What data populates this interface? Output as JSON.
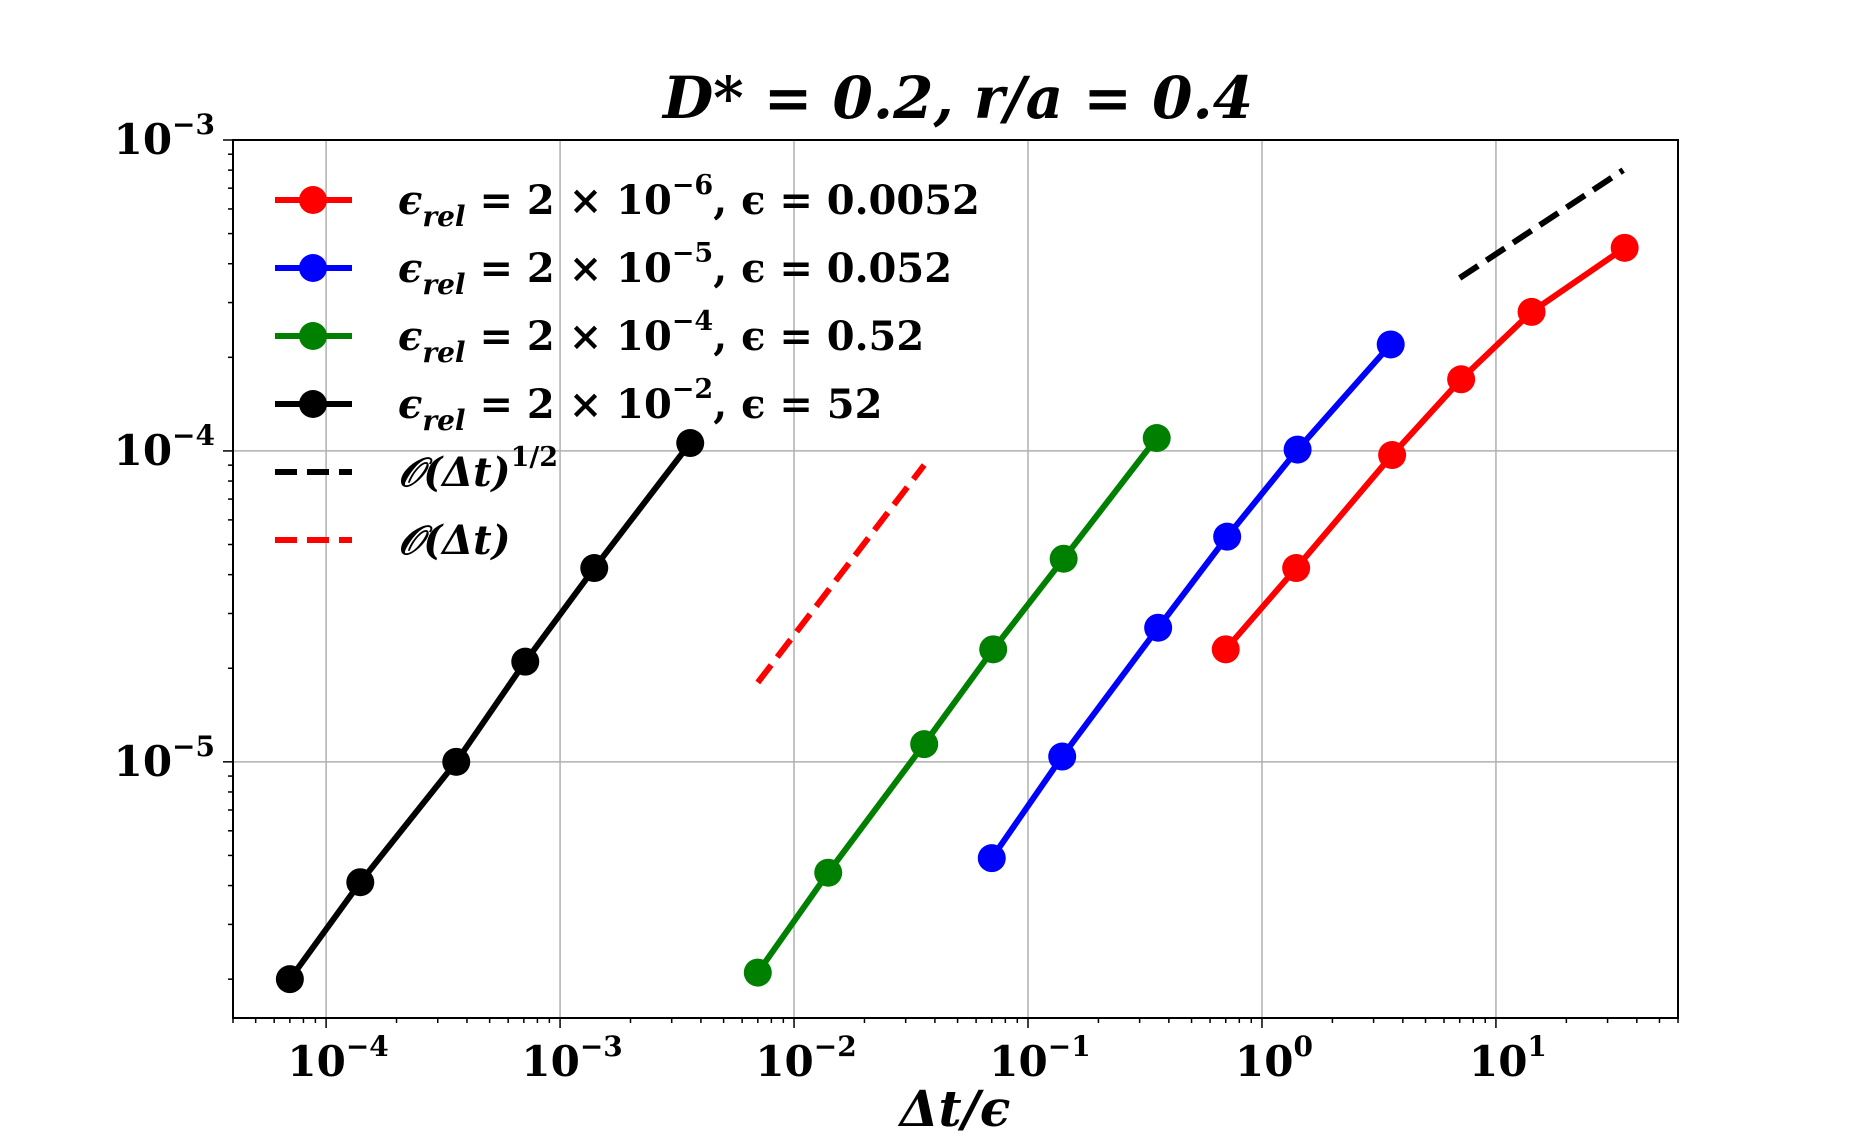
{
  "chart_data": {
    "type": "line",
    "title": "D* = 0.2, r/a = 0.4",
    "xlabel": "Δt/ϵ",
    "ylabel": "",
    "xscale": "log",
    "yscale": "log",
    "xlim": [
      4e-05,
      60
    ],
    "ylim": [
      1.5e-06,
      0.001
    ],
    "grid": true,
    "legend_position": "top-left",
    "x_ticks": [
      {
        "value": 0.0001,
        "base": "10",
        "exp": "−4"
      },
      {
        "value": 0.001,
        "base": "10",
        "exp": "−3"
      },
      {
        "value": 0.01,
        "base": "10",
        "exp": "−2"
      },
      {
        "value": 0.1,
        "base": "10",
        "exp": "−1"
      },
      {
        "value": 1,
        "base": "10",
        "exp": "0"
      },
      {
        "value": 10,
        "base": "10",
        "exp": "1"
      }
    ],
    "y_ticks": [
      {
        "value": 1e-05,
        "base": "10",
        "exp": "−5"
      },
      {
        "value": 0.0001,
        "base": "10",
        "exp": "−4"
      },
      {
        "value": 0.001,
        "base": "10",
        "exp": "−3"
      }
    ],
    "series": [
      {
        "name": "ϵrel = 2 × 10⁻⁶, ϵ = 0.0052",
        "legend": {
          "sym": "ϵ",
          "sub": "rel",
          "mid": " = 2 × 10",
          "exp": "−6",
          "tail": ", ϵ = 0.0052"
        },
        "color": "#ff0000",
        "style": "solid-marker",
        "x": [
          0.7,
          1.4,
          3.6,
          7.1,
          14.2,
          35.5
        ],
        "y": [
          2.3e-05,
          4.2e-05,
          9.7e-05,
          0.00017,
          0.00028,
          0.00045
        ]
      },
      {
        "name": "ϵrel = 2 × 10⁻⁵, ϵ = 0.052",
        "legend": {
          "sym": "ϵ",
          "sub": "rel",
          "mid": " = 2 × 10",
          "exp": "−5",
          "tail": ", ϵ = 0.052"
        },
        "color": "#0000ff",
        "style": "solid-marker",
        "x": [
          0.07,
          0.14,
          0.36,
          0.71,
          1.42,
          3.55
        ],
        "y": [
          4.9e-06,
          1.04e-05,
          2.7e-05,
          5.3e-05,
          0.000101,
          0.00022
        ]
      },
      {
        "name": "ϵrel = 2 × 10⁻⁴, ϵ = 0.52",
        "legend": {
          "sym": "ϵ",
          "sub": "rel",
          "mid": " = 2 × 10",
          "exp": "−4",
          "tail": ", ϵ = 0.52"
        },
        "color": "#008000",
        "style": "solid-marker",
        "x": [
          0.007,
          0.014,
          0.036,
          0.071,
          0.142,
          0.355
        ],
        "y": [
          2.1e-06,
          4.4e-06,
          1.14e-05,
          2.3e-05,
          4.5e-05,
          0.00011
        ]
      },
      {
        "name": "ϵrel = 2 × 10⁻², ϵ = 52",
        "legend": {
          "sym": "ϵ",
          "sub": "rel",
          "mid": " = 2 × 10",
          "exp": "−2",
          "tail": ", ϵ = 52"
        },
        "color": "#000000",
        "style": "solid-marker",
        "x": [
          7e-05,
          0.00014,
          0.00036,
          0.00071,
          0.0014,
          0.0036
        ],
        "y": [
          2e-06,
          4.1e-06,
          1e-05,
          2.1e-05,
          4.2e-05,
          0.000106
        ]
      },
      {
        "name": "O(Δt)^1/2",
        "legend": {
          "sym": "𝒪(Δt)",
          "sub": "",
          "mid": "",
          "exp": "1/2",
          "tail": ""
        },
        "color": "#000000",
        "style": "dashed",
        "x": [
          7,
          35
        ],
        "y": [
          0.00036,
          0.0008
        ]
      },
      {
        "name": "O(Δt)",
        "legend": {
          "sym": "𝒪(Δt)",
          "sub": "",
          "mid": "",
          "exp": "",
          "tail": ""
        },
        "color": "#ff0000",
        "style": "dashed",
        "x": [
          0.007,
          0.036
        ],
        "y": [
          1.8e-05,
          9e-05
        ]
      }
    ]
  }
}
